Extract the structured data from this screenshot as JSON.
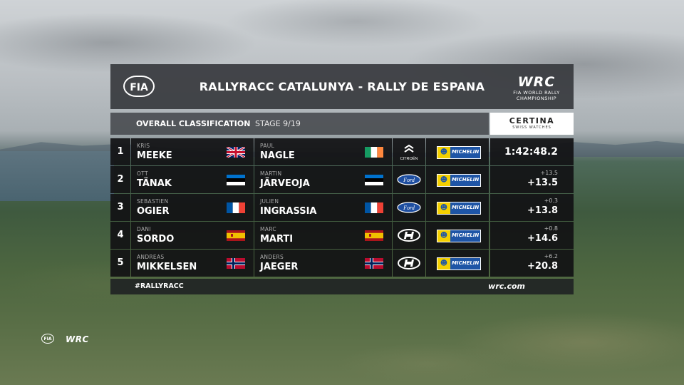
{
  "header": {
    "fia_logo_text": "FIA",
    "title": "RALLYRACC CATALUNYA - RALLY DE ESPANA",
    "wrc_logo_text": "WRC",
    "wrc_logo_subtext": "FIA WORLD RALLY CHAMPIONSHIP"
  },
  "subheader": {
    "label": "OVERALL CLASSIFICATION",
    "stage": "STAGE 9/19",
    "sponsor": "CERTINA",
    "sponsor_sub": "SWISS WATCHES"
  },
  "rows": [
    {
      "pos": "1",
      "driver_first": "KRIS",
      "driver_last": "MEEKE",
      "driver_flag": "uk",
      "codriver_first": "PAUL",
      "codriver_last": "NAGLE",
      "codriver_flag": "ireland",
      "make": "citroen-icon",
      "make_label": "CITROËN",
      "tyre": "MICHELIN",
      "gap_small": "",
      "time": "1:42:48.2"
    },
    {
      "pos": "2",
      "driver_first": "OTT",
      "driver_last": "TÄNAK",
      "driver_flag": "estonia",
      "codriver_first": "MARTIN",
      "codriver_last": "JÄRVEOJA",
      "codriver_flag": "estonia",
      "make": "ford-icon",
      "make_label": "Ford",
      "tyre": "MICHELIN",
      "gap_small": "+13.5",
      "time": "+13.5"
    },
    {
      "pos": "3",
      "driver_first": "SEBASTIEN",
      "driver_last": "OGIER",
      "driver_flag": "france",
      "codriver_first": "JULIEN",
      "codriver_last": "INGRASSIA",
      "codriver_flag": "france",
      "make": "ford-icon",
      "make_label": "Ford",
      "tyre": "MICHELIN",
      "gap_small": "+0.3",
      "time": "+13.8"
    },
    {
      "pos": "4",
      "driver_first": "DANI",
      "driver_last": "SORDO",
      "driver_flag": "spain",
      "codriver_first": "MARC",
      "codriver_last": "MARTI",
      "codriver_flag": "spain",
      "make": "hyundai-icon",
      "make_label": "",
      "tyre": "MICHELIN",
      "gap_small": "+0.8",
      "time": "+14.6"
    },
    {
      "pos": "5",
      "driver_first": "ANDREAS",
      "driver_last": "MIKKELSEN",
      "driver_flag": "norway",
      "codriver_first": "ANDERS",
      "codriver_last": "JAEGER",
      "codriver_flag": "norway",
      "make": "hyundai-icon",
      "make_label": "",
      "tyre": "MICHELIN",
      "gap_small": "+6.2",
      "time": "+20.8"
    }
  ],
  "footer": {
    "hashtag": "#RALLYRACC",
    "url": "wrc.com"
  },
  "corner": {
    "fia": "FIA",
    "wrc": "WRC"
  },
  "colors": {
    "panel": "#121214",
    "header": "#373a3e",
    "michelin_blue": "#1e55a6",
    "michelin_yellow": "#f4d000"
  }
}
